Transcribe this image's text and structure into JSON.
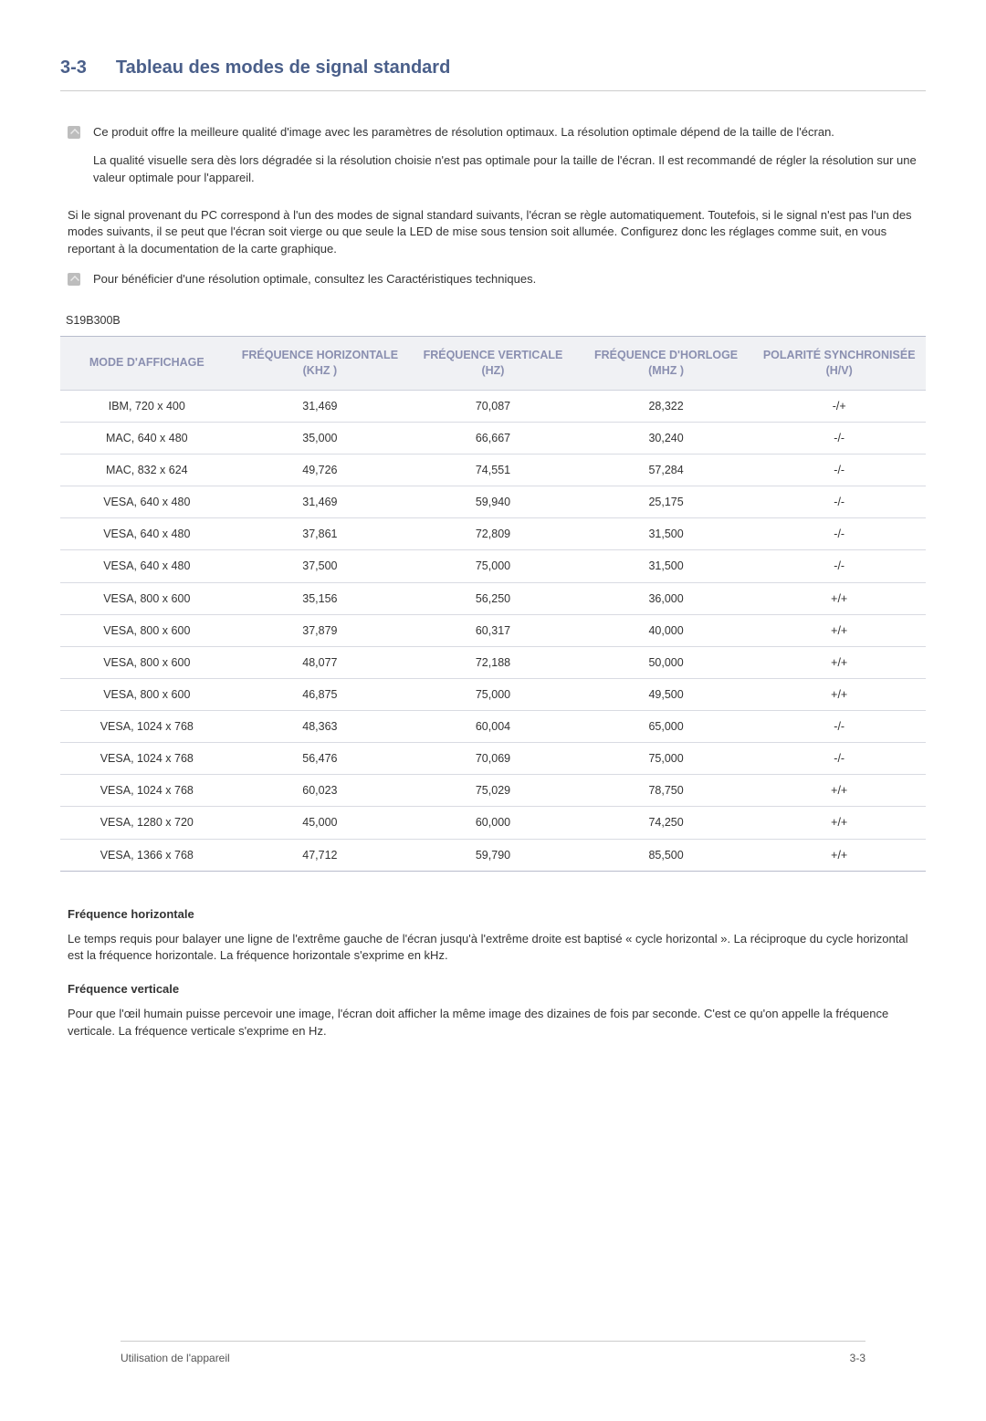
{
  "section": {
    "number": "3-3",
    "title": "Tableau des modes de signal standard"
  },
  "notes": {
    "n1p1": "Ce produit offre la meilleure qualité d'image avec les paramètres de résolution optimaux. La résolution optimale dépend de la taille de l'écran.",
    "n1p2": "La qualité visuelle sera dès lors dégradée si la résolution choisie n'est pas optimale pour la taille de l'écran. Il est recommandé de régler la résolution sur une valeur optimale pour l'appareil.",
    "para": "Si le signal provenant du PC correspond à l'un des modes de signal standard suivants, l'écran se règle automatiquement. Toutefois, si le signal n'est pas l'un des modes suivants, il se peut que l'écran soit vierge ou que seule la LED de mise sous tension soit allumée. Configurez donc les réglages comme suit, en vous reportant à la documentation de la carte graphique.",
    "n2p1": "Pour bénéficier d'une résolution optimale, consultez les Caractéristiques techniques."
  },
  "model": "S19B300B",
  "table": {
    "columns": [
      "MODE D'AFFICHAGE",
      "FRÉQUENCE HORIZONTALE (KHZ )",
      "FRÉQUENCE VERTICALE (HZ)",
      "FRÉQUENCE D'HORLOGE (MHZ )",
      "POLARITÉ SYNCHRONISÉE (H/V)"
    ],
    "rows": [
      [
        "IBM, 720 x 400",
        "31,469",
        "70,087",
        "28,322",
        "-/+"
      ],
      [
        "MAC, 640 x 480",
        "35,000",
        "66,667",
        "30,240",
        "-/-"
      ],
      [
        "MAC, 832 x 624",
        "49,726",
        "74,551",
        "57,284",
        "-/-"
      ],
      [
        "VESA, 640 x 480",
        "31,469",
        "59,940",
        "25,175",
        "-/-"
      ],
      [
        "VESA, 640 x 480",
        "37,861",
        "72,809",
        "31,500",
        "-/-"
      ],
      [
        "VESA, 640 x 480",
        "37,500",
        "75,000",
        "31,500",
        "-/-"
      ],
      [
        "VESA, 800 x 600",
        "35,156",
        "56,250",
        "36,000",
        "+/+"
      ],
      [
        "VESA, 800 x 600",
        "37,879",
        "60,317",
        "40,000",
        "+/+"
      ],
      [
        "VESA, 800 x 600",
        "48,077",
        "72,188",
        "50,000",
        "+/+"
      ],
      [
        "VESA, 800 x 600",
        "46,875",
        "75,000",
        "49,500",
        "+/+"
      ],
      [
        "VESA, 1024 x 768",
        "48,363",
        "60,004",
        "65,000",
        "-/-"
      ],
      [
        "VESA, 1024 x 768",
        "56,476",
        "70,069",
        "75,000",
        "-/-"
      ],
      [
        "VESA, 1024 x 768",
        "60,023",
        "75,029",
        "78,750",
        "+/+"
      ],
      [
        "VESA, 1280 x 720",
        "45,000",
        "60,000",
        "74,250",
        "+/+"
      ],
      [
        "VESA, 1366 x 768",
        "47,712",
        "59,790",
        "85,500",
        "+/+"
      ]
    ]
  },
  "defs": {
    "t1": "Fréquence horizontale",
    "d1": "Le temps requis pour balayer une ligne de l'extrême gauche de l'écran jusqu'à l'extrême droite est baptisé « cycle horizontal ». La réciproque du cycle horizontal est la fréquence horizontale. La fréquence horizontale s'exprime en kHz.",
    "t2": "Fréquence verticale",
    "d2": "Pour que l'œil humain puisse percevoir une image, l'écran doit afficher la même image des dizaines de fois par seconde. C'est ce qu'on appelle la fréquence verticale. La fréquence verticale s'exprime en Hz."
  },
  "footer": {
    "left": "Utilisation de l'appareil",
    "right": "3-3"
  },
  "colors": {
    "heading": "#4a5f8a",
    "th_bg": "#f0f1f4",
    "th_text": "#8a8fb0",
    "divider": "#cccccc",
    "row_border": "#d9dbe2",
    "table_border": "#b8bccc"
  }
}
